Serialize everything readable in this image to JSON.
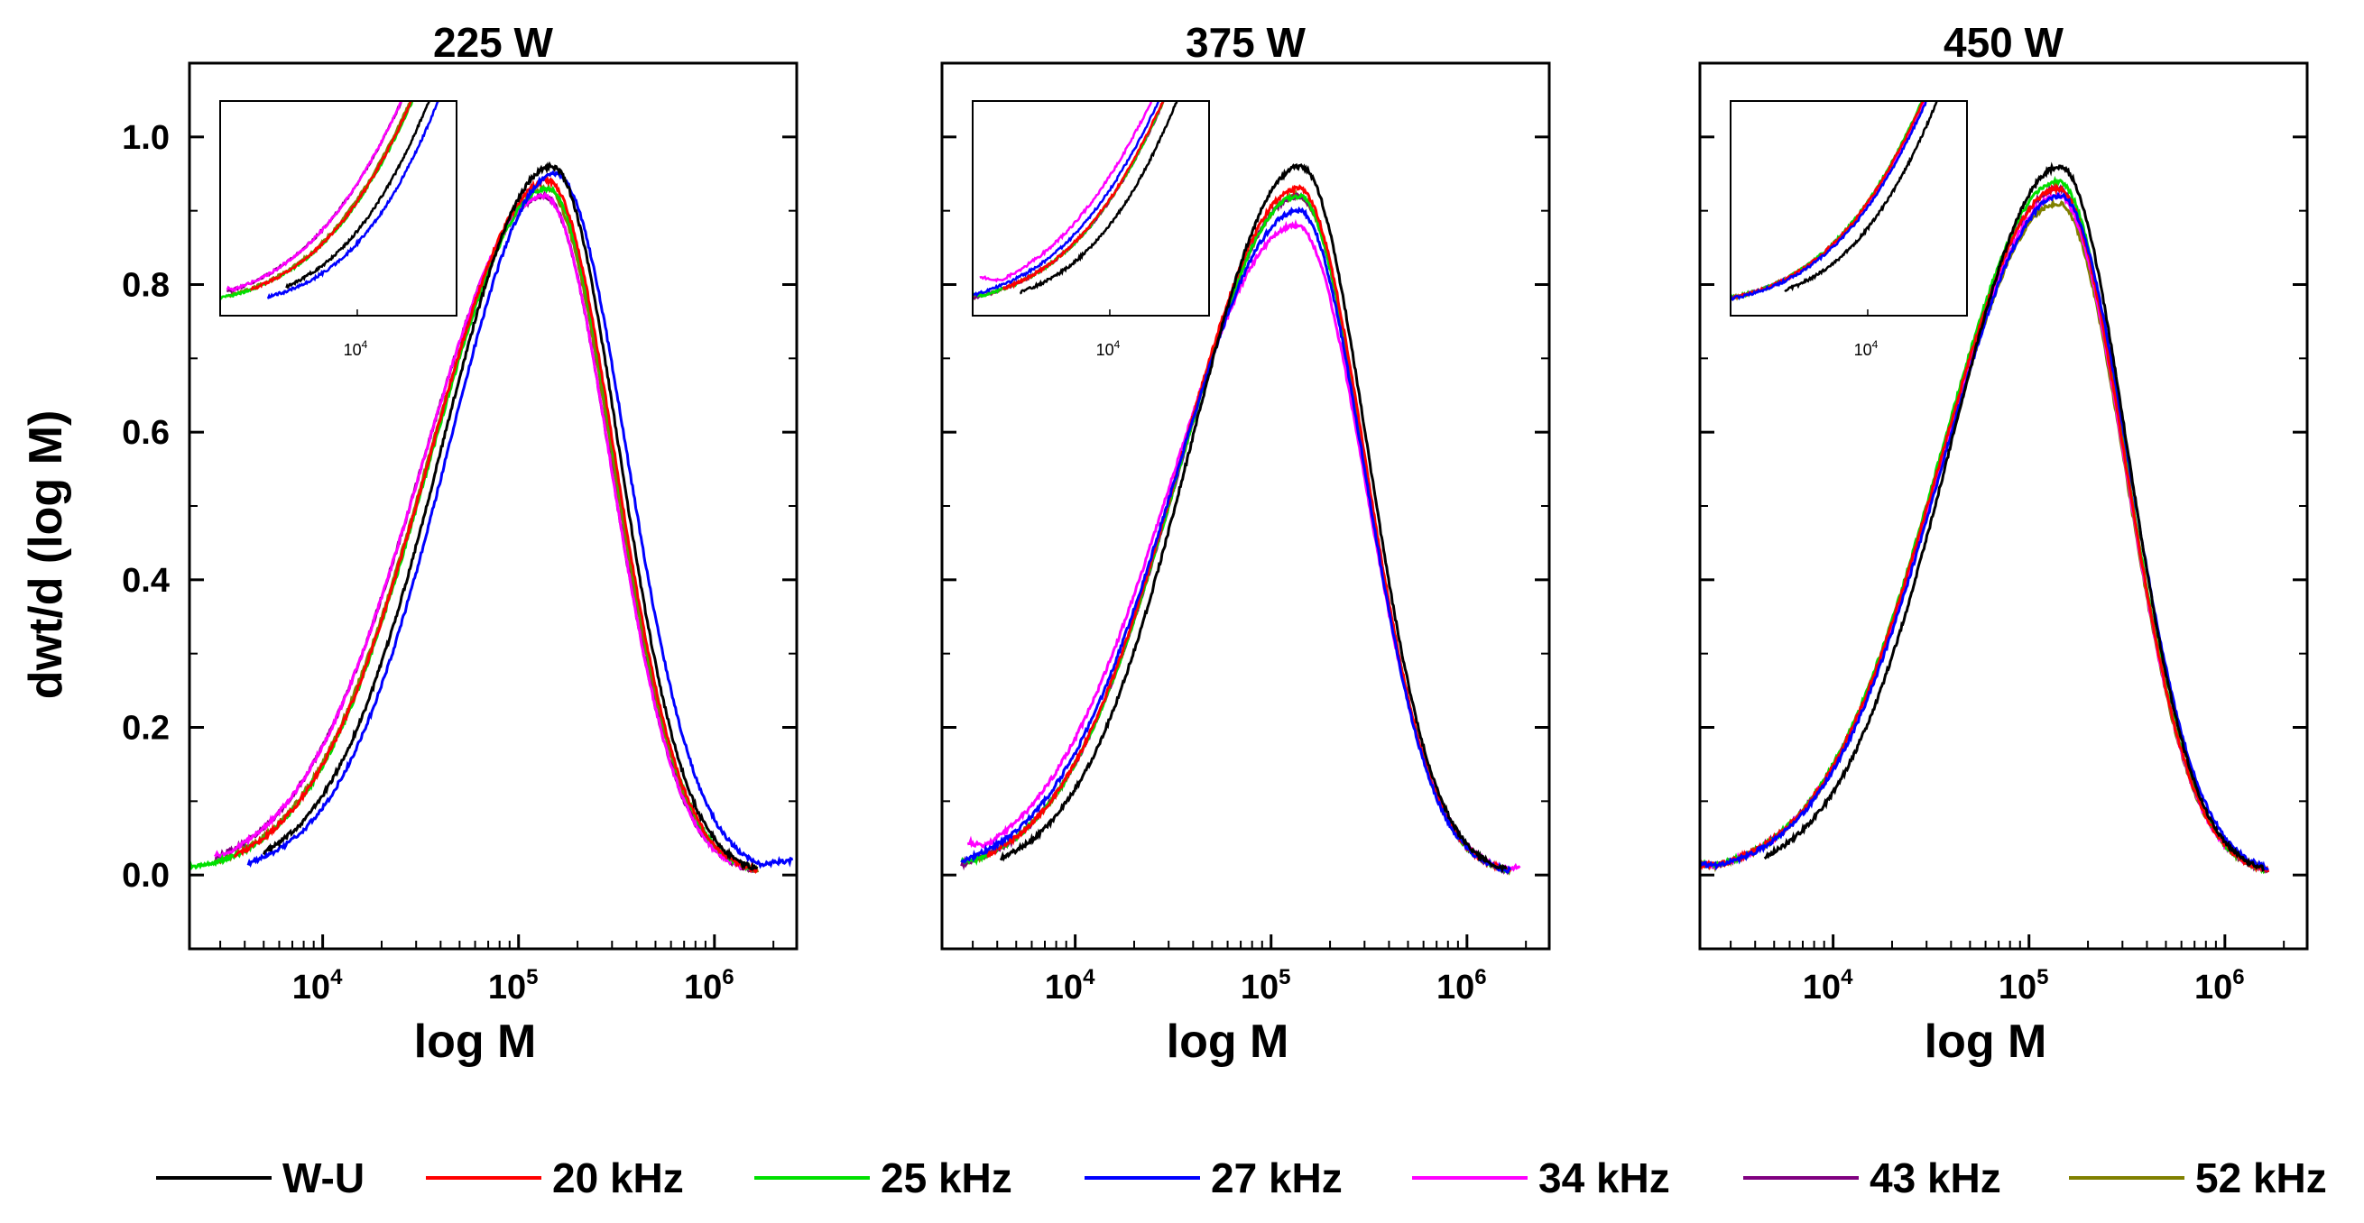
{
  "chart_data": {
    "type": "line",
    "ylabel": "dwt/d (log M)",
    "ylim": [
      -0.1,
      1.1
    ],
    "yticks": [
      0.0,
      0.2,
      0.4,
      0.6,
      0.8,
      1.0
    ],
    "ytick_labels": [
      "0.0",
      "0.2",
      "0.4",
      "0.6",
      "0.8",
      "1.0"
    ],
    "xlabel": "log M",
    "xscale": "log",
    "xlim_log10": [
      3.32,
      6.42
    ],
    "xticks": [
      {
        "base": "10",
        "exp": "4"
      },
      {
        "base": "10",
        "exp": "5"
      },
      {
        "base": "10",
        "exp": "6"
      }
    ],
    "inset": {
      "xlim_log10": [
        3.42,
        4.42
      ],
      "ylim": [
        -0.01,
        0.29
      ],
      "tick": {
        "base": "10",
        "exp": "4"
      }
    },
    "legend": {
      "placement": "bottom",
      "entries": [
        {
          "label": "W-U",
          "color": "#000000"
        },
        {
          "label": "20 kHz",
          "color": "#ff0000"
        },
        {
          "label": "25 kHz",
          "color": "#00e000"
        },
        {
          "label": "27 kHz",
          "color": "#0000ff"
        },
        {
          "label": "34 kHz",
          "color": "#ff00ff"
        },
        {
          "label": "43 kHz",
          "color": "#800080"
        },
        {
          "label": "52 kHz",
          "color": "#808000"
        }
      ]
    },
    "panels": [
      {
        "title": "225 W",
        "series": [
          {
            "name": "W-U",
            "peak_logM": 5.17,
            "peak": 0.96,
            "left_sd": 0.56,
            "right_sd": 0.34,
            "x_start": 3.7,
            "x_end": 6.22,
            "low_start": 0.01,
            "low_end": 0.0
          },
          {
            "name": "20 kHz",
            "peak_logM": 5.15,
            "peak": 0.94,
            "left_sd": 0.6,
            "right_sd": 0.34,
            "x_start": 3.55,
            "x_end": 6.22,
            "low_start": 0.012,
            "low_end": 0.0
          },
          {
            "name": "25 kHz",
            "peak_logM": 5.15,
            "peak": 0.93,
            "left_sd": 0.6,
            "right_sd": 0.34,
            "x_start": 3.32,
            "x_end": 6.2,
            "low_start": 0.012,
            "low_end": 0.0
          },
          {
            "name": "27 kHz",
            "peak_logM": 5.19,
            "peak": 0.95,
            "left_sd": 0.55,
            "right_sd": 0.36,
            "x_start": 3.62,
            "x_end": 6.4,
            "low_start": 0.01,
            "low_end": 0.02
          },
          {
            "name": "34 kHz",
            "peak_logM": 5.13,
            "peak": 0.92,
            "left_sd": 0.62,
            "right_sd": 0.34,
            "x_start": 3.45,
            "x_end": 6.2,
            "low_start": 0.028,
            "low_end": 0.0
          },
          {
            "name": "43 kHz",
            "peak_logM": 5.13,
            "peak": 0.92,
            "left_sd": 0.62,
            "right_sd": 0.34,
            "x_start": 3.45,
            "x_end": 6.2,
            "low_start": 0.025,
            "low_end": 0.0
          },
          {
            "name": "52 kHz",
            "peak_logM": 5.14,
            "peak": 0.93,
            "left_sd": 0.6,
            "right_sd": 0.34,
            "x_start": 3.45,
            "x_end": 6.22,
            "low_start": 0.018,
            "low_end": 0.0
          }
        ]
      },
      {
        "title": "375 W",
        "series": [
          {
            "name": "W-U",
            "peak_logM": 5.15,
            "peak": 0.96,
            "left_sd": 0.56,
            "right_sd": 0.34,
            "x_start": 3.62,
            "x_end": 6.2,
            "low_start": 0.008,
            "low_end": 0.0
          },
          {
            "name": "20 kHz",
            "peak_logM": 5.14,
            "peak": 0.93,
            "left_sd": 0.6,
            "right_sd": 0.34,
            "x_start": 3.55,
            "x_end": 6.22,
            "low_start": 0.01,
            "low_end": 0.0
          },
          {
            "name": "25 kHz",
            "peak_logM": 5.14,
            "peak": 0.92,
            "left_sd": 0.6,
            "right_sd": 0.34,
            "x_start": 3.42,
            "x_end": 6.22,
            "low_start": 0.02,
            "low_end": 0.0
          },
          {
            "name": "27 kHz",
            "peak_logM": 5.14,
            "peak": 0.9,
            "left_sd": 0.62,
            "right_sd": 0.34,
            "x_start": 3.42,
            "x_end": 6.22,
            "low_start": 0.02,
            "low_end": 0.005
          },
          {
            "name": "34 kHz",
            "peak_logM": 5.13,
            "peak": 0.88,
            "left_sd": 0.64,
            "right_sd": 0.35,
            "x_start": 3.45,
            "x_end": 6.27,
            "low_start": 0.045,
            "low_end": 0.01
          },
          {
            "name": "43 kHz",
            "peak_logM": 5.14,
            "peak": 0.92,
            "left_sd": 0.6,
            "right_sd": 0.34,
            "x_start": 3.42,
            "x_end": 6.22,
            "low_start": 0.015,
            "low_end": 0.0
          },
          {
            "name": "52 kHz",
            "peak_logM": 5.14,
            "peak": 0.92,
            "left_sd": 0.6,
            "right_sd": 0.34,
            "x_start": 3.42,
            "x_end": 6.22,
            "low_start": 0.015,
            "low_end": 0.0
          }
        ]
      },
      {
        "title": "450 W",
        "series": [
          {
            "name": "W-U",
            "peak_logM": 5.16,
            "peak": 0.96,
            "left_sd": 0.56,
            "right_sd": 0.34,
            "x_start": 3.65,
            "x_end": 6.2,
            "low_start": 0.008,
            "low_end": 0.0
          },
          {
            "name": "20 kHz",
            "peak_logM": 5.15,
            "peak": 0.93,
            "left_sd": 0.6,
            "right_sd": 0.34,
            "x_start": 3.32,
            "x_end": 6.22,
            "low_start": 0.015,
            "low_end": 0.0
          },
          {
            "name": "25 kHz",
            "peak_logM": 5.15,
            "peak": 0.94,
            "left_sd": 0.6,
            "right_sd": 0.34,
            "x_start": 3.32,
            "x_end": 6.22,
            "low_start": 0.015,
            "low_end": 0.0
          },
          {
            "name": "27 kHz",
            "peak_logM": 5.16,
            "peak": 0.92,
            "left_sd": 0.6,
            "right_sd": 0.35,
            "x_start": 3.32,
            "x_end": 6.22,
            "low_start": 0.015,
            "low_end": 0.0
          },
          {
            "name": "34 kHz",
            "peak_logM": 5.15,
            "peak": 0.92,
            "left_sd": 0.6,
            "right_sd": 0.34,
            "x_start": 3.32,
            "x_end": 6.22,
            "low_start": 0.015,
            "low_end": 0.0
          },
          {
            "name": "43 kHz",
            "peak_logM": 5.15,
            "peak": 0.93,
            "left_sd": 0.6,
            "right_sd": 0.34,
            "x_start": 3.32,
            "x_end": 6.22,
            "low_start": 0.015,
            "low_end": 0.0
          },
          {
            "name": "52 kHz",
            "peak_logM": 5.15,
            "peak": 0.91,
            "left_sd": 0.6,
            "right_sd": 0.34,
            "x_start": 3.32,
            "x_end": 6.22,
            "low_start": 0.015,
            "low_end": 0.0
          }
        ]
      }
    ]
  }
}
